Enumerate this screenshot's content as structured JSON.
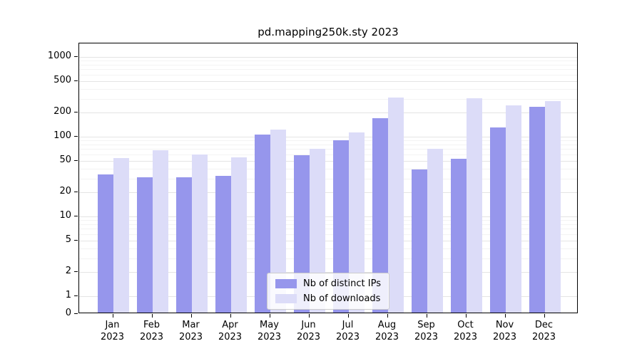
{
  "title": "pd.mapping250k.sty 2023",
  "colors": {
    "ips": "#9696ec",
    "downloads": "#dcdcf8",
    "grid_major": "#e4e4e4",
    "grid_minor": "#f3f3f3",
    "axis": "#000000"
  },
  "legend": {
    "items": [
      {
        "label": "Nb of distinct IPs",
        "series": "ips"
      },
      {
        "label": "Nb of downloads",
        "series": "downloads"
      }
    ]
  },
  "chart_data": {
    "type": "bar",
    "title": "pd.mapping250k.sty 2023",
    "categories": [
      "Jan",
      "Feb",
      "Mar",
      "Apr",
      "May",
      "Jun",
      "Jul",
      "Aug",
      "Sep",
      "Oct",
      "Nov",
      "Dec"
    ],
    "year": "2023",
    "series": [
      {
        "name": "Nb of distinct IPs",
        "values": [
          32,
          30,
          30,
          31,
          102,
          56,
          86,
          165,
          37,
          51,
          125,
          230
        ]
      },
      {
        "name": "Nb of downloads",
        "values": [
          52,
          65,
          57,
          53,
          118,
          68,
          108,
          300,
          68,
          290,
          235,
          270
        ]
      }
    ],
    "yscale": "symlog",
    "yticks": [
      0,
      1,
      2,
      5,
      10,
      20,
      50,
      100,
      200,
      500,
      1000
    ],
    "ylim": [
      0,
      1400
    ],
    "grid": true,
    "legend_position": "lower center"
  }
}
